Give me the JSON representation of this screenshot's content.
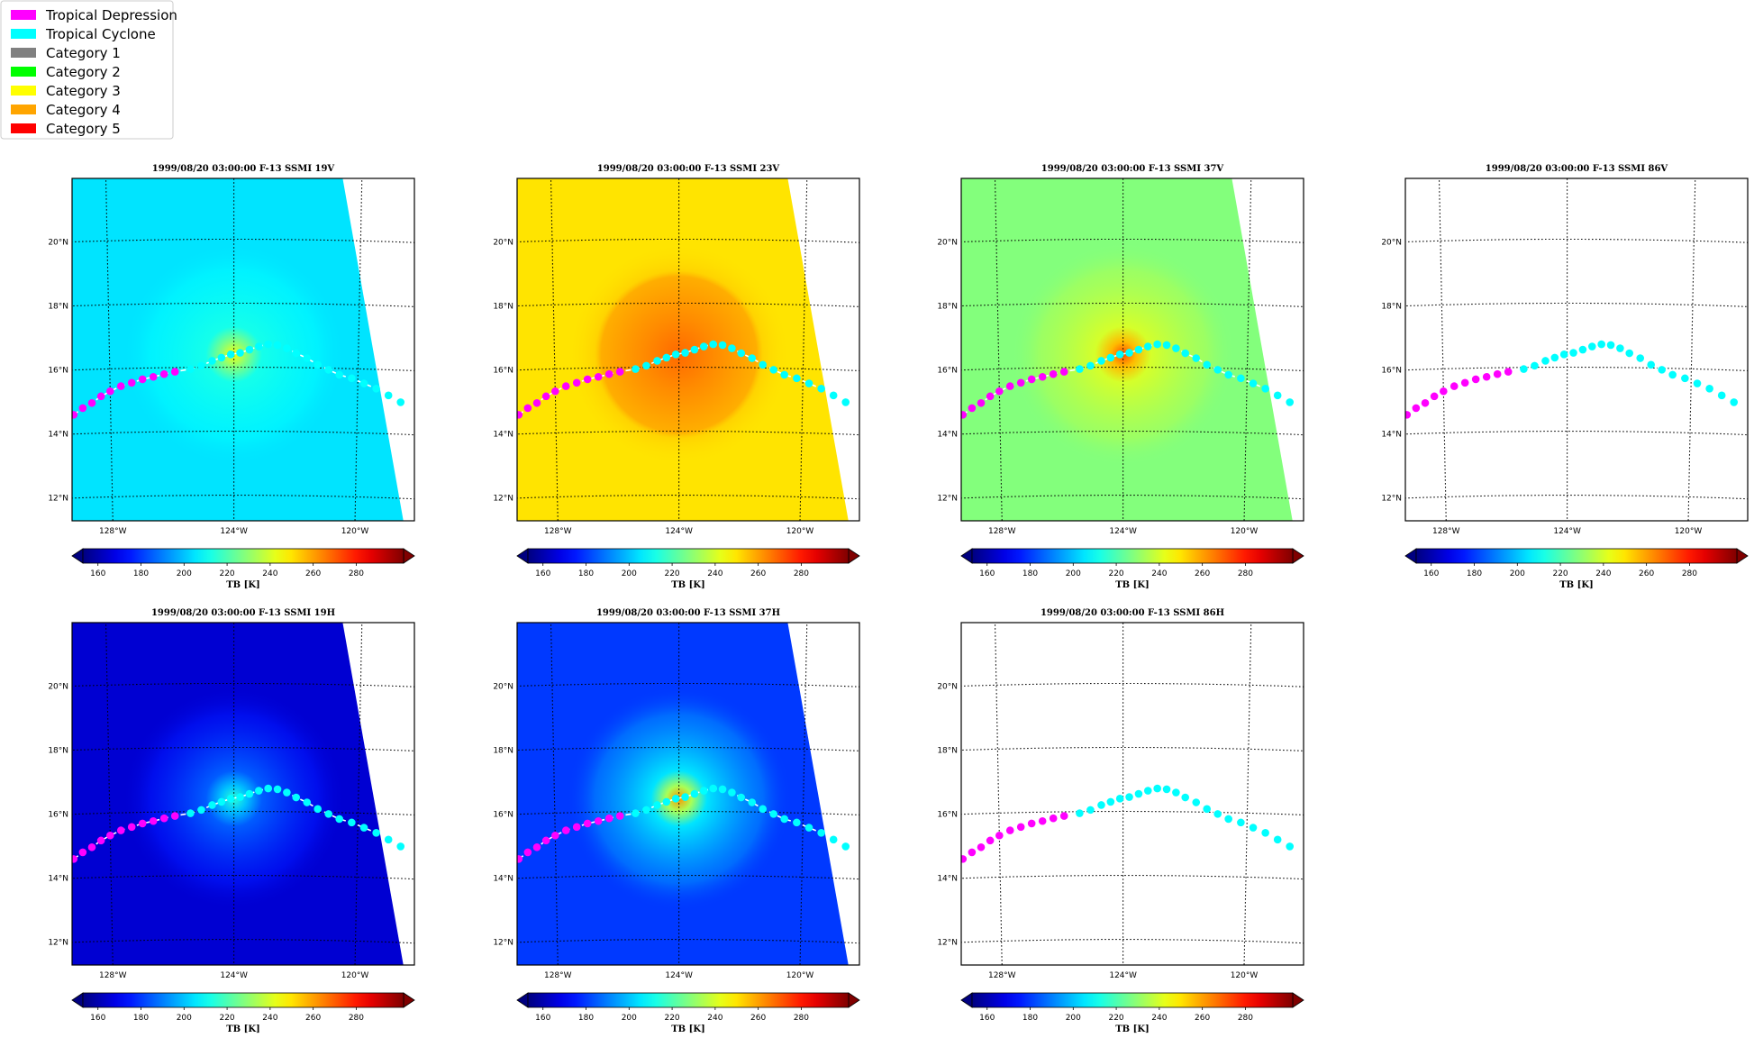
{
  "legend": {
    "entries": [
      {
        "label": "Tropical Depression",
        "color": "#ff00ff"
      },
      {
        "label": "Tropical Cyclone",
        "color": "#00ffff"
      },
      {
        "label": "Category 1",
        "color": "#808080"
      },
      {
        "label": "Category 2",
        "color": "#00ff00"
      },
      {
        "label": "Category 3",
        "color": "#ffff00"
      },
      {
        "label": "Category 4",
        "color": "#ffa500"
      },
      {
        "label": "Category 5",
        "color": "#ff0000"
      }
    ]
  },
  "chart_data": [
    {
      "type": "heatmap",
      "title": "1999/08/20 03:00:00  F-13 SSMI 19V",
      "channel": "19V",
      "has_swath": true,
      "background_tb": 205,
      "core_tb": 245,
      "core_radius_deg": 0.9,
      "halo_tb": 212
    },
    {
      "type": "heatmap",
      "title": "1999/08/20 03:00:00  F-13 SSMI 23V",
      "channel": "23V",
      "has_swath": true,
      "background_tb": 250,
      "core_tb": 268,
      "core_radius_deg": 2.5,
      "halo_tb": 258
    },
    {
      "type": "heatmap",
      "title": "1999/08/20 03:00:00  F-13 SSMI 37V",
      "channel": "37V",
      "has_swath": true,
      "background_tb": 228,
      "core_tb": 272,
      "core_radius_deg": 0.9,
      "halo_tb": 240
    },
    {
      "type": "heatmap",
      "title": "1999/08/20 03:00:00  F-13 SSMI 86V",
      "channel": "86V",
      "has_swath": false
    },
    {
      "type": "heatmap",
      "title": "1999/08/20 03:00:00  F-13 SSMI 19H",
      "channel": "19H",
      "has_swath": true,
      "background_tb": 165,
      "core_tb": 215,
      "core_radius_deg": 0.9,
      "halo_tb": 185
    },
    {
      "type": "heatmap",
      "title": "1999/08/20 03:00:00  F-13 SSMI 37H",
      "channel": "37H",
      "has_swath": true,
      "background_tb": 180,
      "core_tb": 262,
      "core_radius_deg": 0.9,
      "halo_tb": 205
    },
    {
      "type": "heatmap",
      "title": "1999/08/20 03:00:00  F-13 SSMI 86H",
      "channel": "86H",
      "has_swath": false
    }
  ],
  "map": {
    "lon_range": [
      -129.2,
      -118.2
    ],
    "lat_range": [
      11.2,
      21.9
    ],
    "lon_ticks": [
      -128,
      -124,
      -120
    ],
    "lon_tick_labels": [
      "128°W",
      "124°W",
      "120°W"
    ],
    "lat_ticks": [
      12,
      14,
      16,
      18,
      20
    ],
    "lat_tick_labels": [
      "12°N",
      "14°N",
      "16°N",
      "18°N",
      "20°N"
    ],
    "swath_edge": {
      "top_lon": -120.6,
      "bottom_lon": -118.4
    },
    "storm_center": {
      "lon": -124.0,
      "lat": 16.4
    }
  },
  "track": {
    "depression_points": [
      [
        -129.2,
        14.6
      ],
      [
        -128.9,
        14.8
      ],
      [
        -128.6,
        14.95
      ],
      [
        -128.3,
        15.15
      ],
      [
        -128.0,
        15.3
      ],
      [
        -127.65,
        15.45
      ],
      [
        -127.3,
        15.55
      ],
      [
        -126.95,
        15.65
      ],
      [
        -126.6,
        15.72
      ],
      [
        -126.25,
        15.8
      ],
      [
        -125.9,
        15.87
      ]
    ],
    "cyclone_points": [
      [
        -125.4,
        15.95
      ],
      [
        -125.05,
        16.05
      ],
      [
        -124.7,
        16.2
      ],
      [
        -124.4,
        16.3
      ],
      [
        -124.1,
        16.4
      ],
      [
        -123.8,
        16.45
      ],
      [
        -123.5,
        16.55
      ],
      [
        -123.2,
        16.65
      ],
      [
        -122.9,
        16.72
      ],
      [
        -122.6,
        16.7
      ],
      [
        -122.3,
        16.6
      ],
      [
        -122.0,
        16.45
      ],
      [
        -121.65,
        16.3
      ],
      [
        -121.3,
        16.1
      ],
      [
        -120.95,
        15.95
      ],
      [
        -120.6,
        15.8
      ],
      [
        -120.2,
        15.7
      ],
      [
        -119.8,
        15.55
      ],
      [
        -119.4,
        15.4
      ],
      [
        -119.0,
        15.2
      ],
      [
        -118.6,
        15.0
      ]
    ]
  },
  "colorbar": {
    "tick_values": [
      160,
      180,
      200,
      220,
      240,
      260,
      280
    ],
    "tick_labels": [
      "160",
      "180",
      "200",
      "220",
      "240",
      "260",
      "280"
    ],
    "range": [
      153,
      302
    ],
    "label": "TB [K]",
    "colormap": "jet"
  }
}
